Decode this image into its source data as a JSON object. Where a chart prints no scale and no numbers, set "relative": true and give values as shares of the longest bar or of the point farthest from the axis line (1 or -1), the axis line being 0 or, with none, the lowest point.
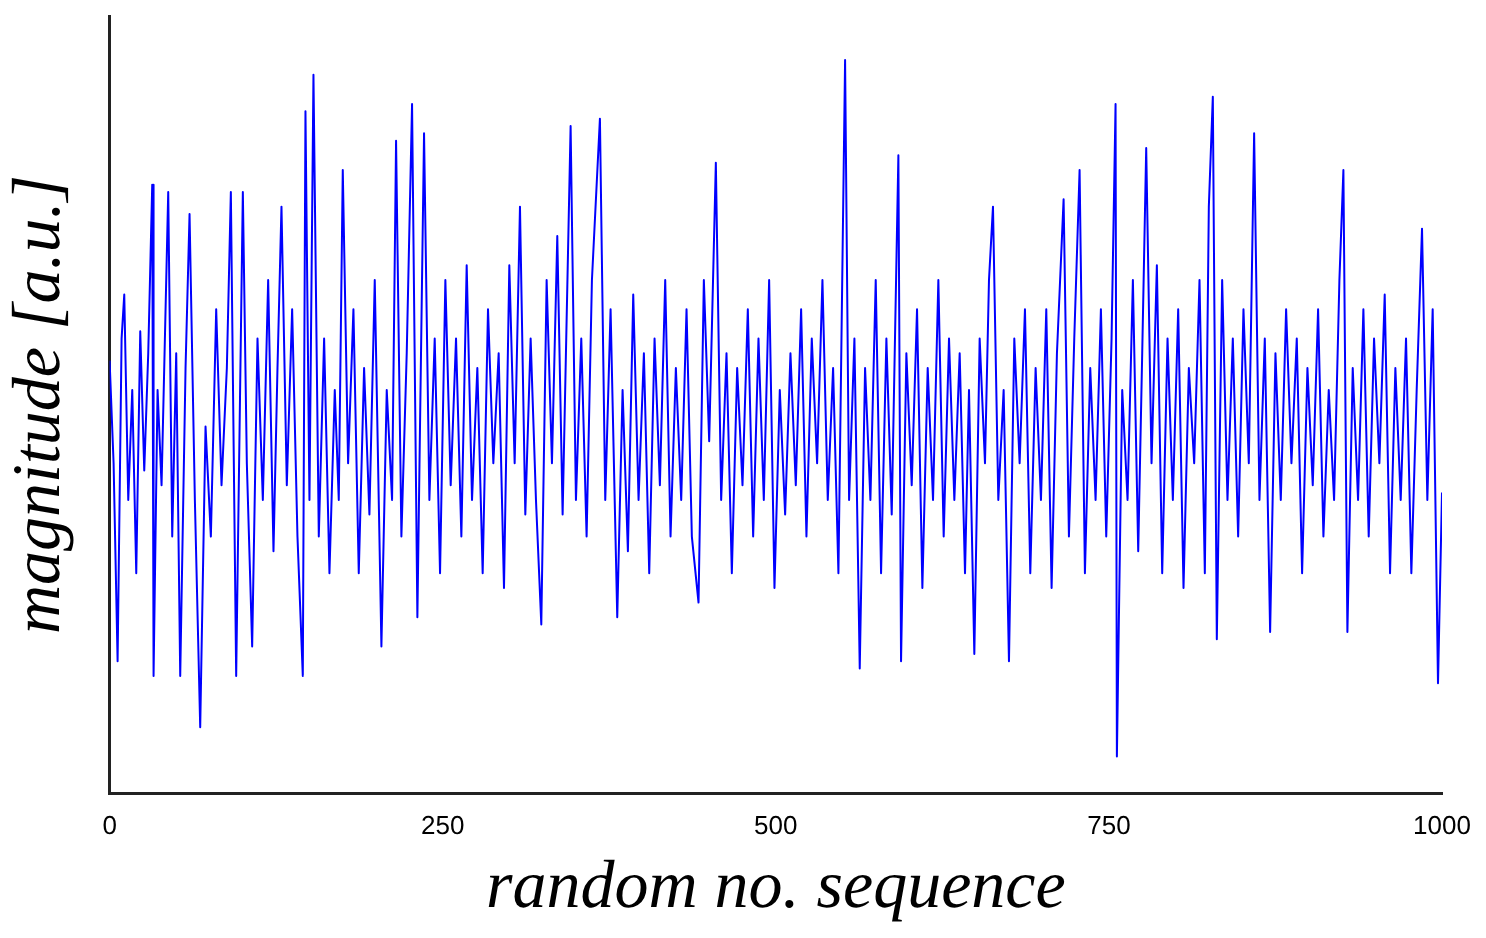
{
  "chart_data": {
    "type": "line",
    "xlabel": "random no. sequence",
    "ylabel": "magnitude [a.u.]",
    "relative": true,
    "xlim": [
      0,
      1000
    ],
    "xticks": [
      0,
      250,
      500,
      750,
      1000
    ],
    "grid": false,
    "legend": false,
    "marker": "none",
    "line_style": "solid",
    "series": [
      {
        "color": "#0000ff",
        "x": [
          0,
          3,
          6,
          9,
          11,
          14,
          17,
          20,
          23,
          26,
          29,
          32,
          33,
          36,
          39,
          44,
          47,
          50,
          53,
          57,
          60,
          64,
          68,
          72,
          76,
          80,
          84,
          88,
          91,
          95,
          100,
          103,
          107,
          111,
          115,
          119,
          123,
          126,
          129,
          133,
          137,
          141,
          145,
          147,
          150,
          153,
          157,
          161,
          165,
          169,
          172,
          175,
          179,
          183,
          187,
          191,
          195,
          199,
          204,
          208,
          212,
          215,
          219,
          223,
          227,
          231,
          236,
          240,
          244,
          248,
          252,
          256,
          260,
          264,
          268,
          272,
          276,
          280,
          284,
          288,
          292,
          296,
          300,
          304,
          308,
          312,
          316,
          320,
          324,
          328,
          332,
          336,
          340,
          346,
          350,
          354,
          358,
          362,
          368,
          372,
          376,
          381,
          385,
          389,
          393,
          397,
          401,
          405,
          409,
          413,
          417,
          421,
          425,
          429,
          433,
          437,
          442,
          446,
          450,
          455,
          459,
          463,
          467,
          471,
          475,
          479,
          483,
          487,
          491,
          495,
          499,
          503,
          507,
          511,
          515,
          519,
          523,
          527,
          531,
          535,
          539,
          543,
          547,
          552,
          555,
          559,
          563,
          567,
          571,
          575,
          579,
          583,
          587,
          592,
          594,
          598,
          602,
          606,
          610,
          614,
          618,
          622,
          626,
          630,
          634,
          638,
          642,
          645,
          649,
          653,
          657,
          660,
          663,
          667,
          671,
          675,
          679,
          683,
          687,
          691,
          695,
          699,
          703,
          707,
          711,
          716,
          720,
          724,
          728,
          732,
          736,
          740,
          744,
          748,
          752,
          755,
          756,
          760,
          764,
          768,
          772,
          775,
          778,
          782,
          786,
          790,
          794,
          798,
          802,
          806,
          810,
          814,
          818,
          822,
          825,
          828,
          831,
          835,
          839,
          843,
          847,
          851,
          855,
          859,
          863,
          867,
          871,
          875,
          879,
          883,
          887,
          891,
          895,
          899,
          903,
          907,
          911,
          915,
          919,
          923,
          926,
          929,
          933,
          937,
          941,
          945,
          949,
          953,
          957,
          961,
          965,
          969,
          973,
          977,
          981,
          985,
          989,
          993,
          997,
          1000
        ],
        "values": [
          0.59,
          0.45,
          0.18,
          0.62,
          0.68,
          0.4,
          0.55,
          0.3,
          0.63,
          0.44,
          0.6,
          0.83,
          0.16,
          0.55,
          0.42,
          0.82,
          0.35,
          0.6,
          0.16,
          0.58,
          0.79,
          0.4,
          0.09,
          0.5,
          0.35,
          0.66,
          0.42,
          0.58,
          0.82,
          0.16,
          0.82,
          0.45,
          0.2,
          0.62,
          0.4,
          0.7,
          0.33,
          0.58,
          0.8,
          0.42,
          0.66,
          0.35,
          0.16,
          0.93,
          0.4,
          0.98,
          0.35,
          0.62,
          0.3,
          0.55,
          0.4,
          0.85,
          0.45,
          0.66,
          0.3,
          0.58,
          0.38,
          0.7,
          0.2,
          0.55,
          0.4,
          0.89,
          0.35,
          0.6,
          0.94,
          0.24,
          0.9,
          0.4,
          0.62,
          0.3,
          0.7,
          0.42,
          0.62,
          0.35,
          0.72,
          0.4,
          0.58,
          0.3,
          0.66,
          0.45,
          0.6,
          0.28,
          0.72,
          0.45,
          0.8,
          0.38,
          0.62,
          0.4,
          0.23,
          0.7,
          0.45,
          0.76,
          0.38,
          0.91,
          0.4,
          0.62,
          0.35,
          0.7,
          0.92,
          0.4,
          0.66,
          0.24,
          0.55,
          0.33,
          0.68,
          0.4,
          0.6,
          0.3,
          0.62,
          0.42,
          0.7,
          0.35,
          0.58,
          0.4,
          0.66,
          0.35,
          0.26,
          0.7,
          0.48,
          0.86,
          0.4,
          0.6,
          0.3,
          0.58,
          0.42,
          0.66,
          0.35,
          0.62,
          0.4,
          0.7,
          0.28,
          0.55,
          0.38,
          0.6,
          0.42,
          0.66,
          0.35,
          0.62,
          0.45,
          0.7,
          0.4,
          0.58,
          0.3,
          1.0,
          0.4,
          0.62,
          0.17,
          0.58,
          0.4,
          0.7,
          0.3,
          0.62,
          0.38,
          0.87,
          0.18,
          0.6,
          0.42,
          0.66,
          0.28,
          0.58,
          0.4,
          0.7,
          0.35,
          0.62,
          0.4,
          0.6,
          0.3,
          0.55,
          0.19,
          0.62,
          0.45,
          0.7,
          0.8,
          0.4,
          0.55,
          0.18,
          0.62,
          0.45,
          0.66,
          0.3,
          0.58,
          0.4,
          0.66,
          0.28,
          0.6,
          0.81,
          0.35,
          0.62,
          0.85,
          0.3,
          0.58,
          0.4,
          0.66,
          0.35,
          0.62,
          0.94,
          0.05,
          0.55,
          0.4,
          0.7,
          0.33,
          0.6,
          0.88,
          0.45,
          0.72,
          0.3,
          0.62,
          0.4,
          0.66,
          0.28,
          0.58,
          0.45,
          0.7,
          0.3,
          0.8,
          0.95,
          0.21,
          0.7,
          0.4,
          0.62,
          0.35,
          0.66,
          0.45,
          0.9,
          0.4,
          0.62,
          0.22,
          0.6,
          0.4,
          0.66,
          0.45,
          0.62,
          0.3,
          0.58,
          0.42,
          0.66,
          0.35,
          0.55,
          0.4,
          0.7,
          0.85,
          0.22,
          0.58,
          0.4,
          0.66,
          0.35,
          0.62,
          0.45,
          0.68,
          0.3,
          0.58,
          0.4,
          0.62,
          0.3,
          0.55,
          0.77,
          0.4,
          0.66,
          0.15,
          0.41
        ]
      }
    ]
  }
}
